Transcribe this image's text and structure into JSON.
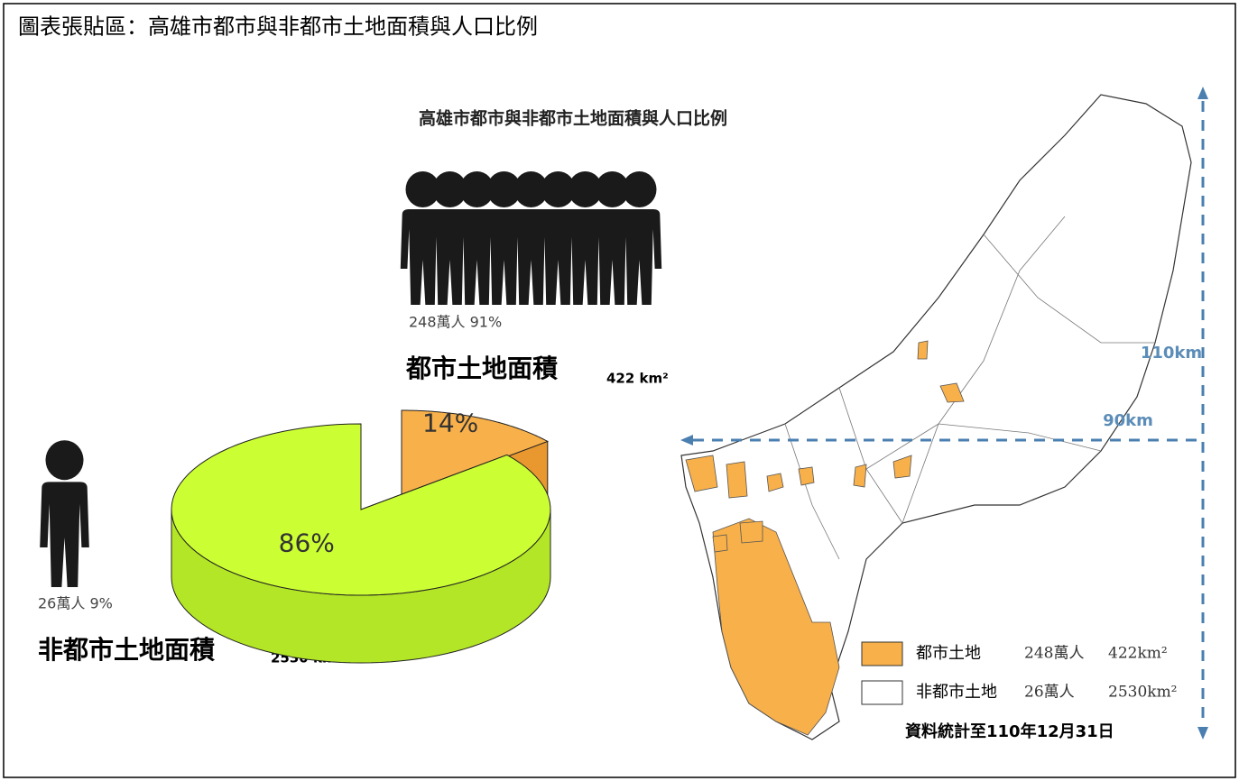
{
  "header": {
    "title": "圖表張貼區：高雄市都市與非都市土地面積與人口比例"
  },
  "infographic": {
    "title": "高雄市都市與非都市土地面積與人口比例",
    "urban": {
      "population": "248萬人 91%",
      "label": "都市土地面積",
      "area": "422 km²"
    },
    "nonurban": {
      "population": "26萬人 9%",
      "label": "非都市土地面積",
      "area": "2530 km²"
    },
    "pie": {
      "slices": [
        {
          "label": "14%",
          "value": 14,
          "color": "#f8b04a",
          "side": "#e8982e"
        },
        {
          "label": "86%",
          "value": 86,
          "color": "#ccff33",
          "side": "#b3e626"
        }
      ]
    }
  },
  "map": {
    "scale_vertical": "110km",
    "scale_horizontal": "90km",
    "legend": [
      {
        "name": "都市土地",
        "population": "248萬人",
        "area": "422km²",
        "color": "#f8b04a"
      },
      {
        "name": "非都市土地",
        "population": "26萬人",
        "area": "2530km²",
        "color": "#ffffff"
      }
    ],
    "note": "資料統計至110年12月31日"
  }
}
